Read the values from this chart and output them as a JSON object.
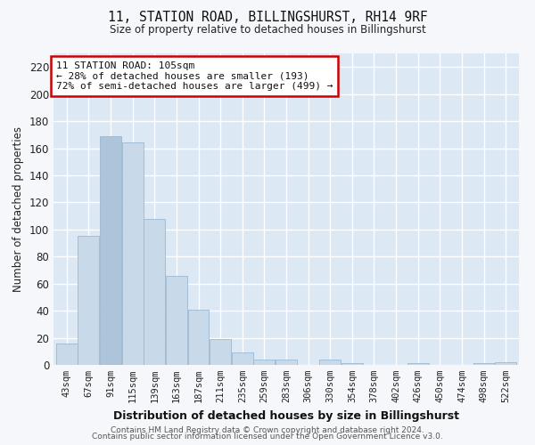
{
  "title": "11, STATION ROAD, BILLINGSHURST, RH14 9RF",
  "subtitle": "Size of property relative to detached houses in Billingshurst",
  "xlabel": "Distribution of detached houses by size in Billingshurst",
  "ylabel": "Number of detached properties",
  "bar_color": "#c8d9ea",
  "bar_edge_color": "#9ab8d0",
  "background_color": "#dde8f5",
  "fig_background_color": "#f5f7fa",
  "grid_color": "#ffffff",
  "categories": [
    "43sqm",
    "67sqm",
    "91sqm",
    "115sqm",
    "139sqm",
    "163sqm",
    "187sqm",
    "211sqm",
    "235sqm",
    "259sqm",
    "283sqm",
    "306sqm",
    "330sqm",
    "354sqm",
    "378sqm",
    "402sqm",
    "426sqm",
    "450sqm",
    "474sqm",
    "498sqm",
    "522sqm"
  ],
  "values": [
    16,
    95,
    169,
    164,
    108,
    66,
    41,
    19,
    9,
    4,
    4,
    0,
    4,
    1,
    0,
    0,
    1,
    0,
    0,
    1,
    2
  ],
  "ylim": [
    0,
    230
  ],
  "yticks": [
    0,
    20,
    40,
    60,
    80,
    100,
    120,
    140,
    160,
    180,
    200,
    220
  ],
  "annotation_text": "11 STATION ROAD: 105sqm\n← 28% of detached houses are smaller (193)\n72% of semi-detached houses are larger (499) →",
  "annotation_box_color": "#ffffff",
  "annotation_box_edge": "#cc0000",
  "highlight_bar_index": 2,
  "footer_line1": "Contains HM Land Registry data © Crown copyright and database right 2024.",
  "footer_line2": "Contains public sector information licensed under the Open Government Licence v3.0."
}
